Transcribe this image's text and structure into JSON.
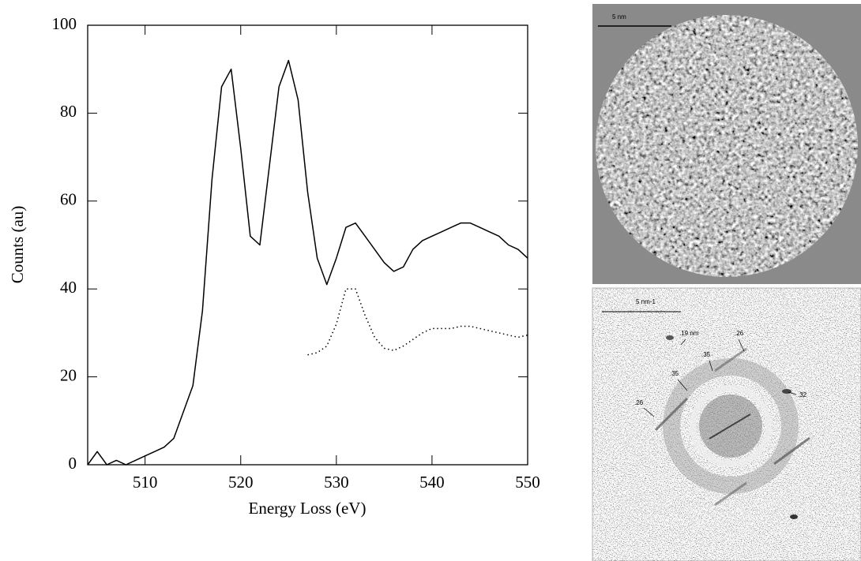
{
  "chart_data": {
    "type": "line",
    "xlabel": "Energy Loss (eV)",
    "ylabel": "Counts (au)",
    "x": [
      504,
      505,
      506,
      507,
      508,
      509,
      510,
      511,
      512,
      513,
      514,
      515,
      516,
      517,
      518,
      519,
      520,
      521,
      522,
      523,
      524,
      525,
      526,
      527,
      528,
      529,
      530,
      531,
      532,
      533,
      534,
      535,
      536,
      537,
      538,
      539,
      540,
      541,
      542,
      543,
      544,
      545,
      546,
      547,
      548,
      549,
      550
    ],
    "series": [
      {
        "color": "#000000",
        "style": "solid",
        "values": [
          0,
          3,
          0,
          1,
          0,
          1,
          2,
          3,
          4,
          6,
          12,
          18,
          35,
          65,
          86,
          90,
          72,
          52,
          50,
          68,
          86,
          92,
          83,
          62,
          47,
          41,
          47,
          54,
          55,
          52,
          49,
          46,
          44,
          45,
          49,
          51,
          52,
          53,
          54,
          55,
          55,
          54,
          53,
          52,
          50,
          49,
          47
        ]
      },
      {
        "color": "#000000",
        "style": "dotted",
        "values": [
          null,
          null,
          null,
          null,
          null,
          null,
          null,
          null,
          null,
          null,
          null,
          null,
          null,
          null,
          null,
          null,
          null,
          null,
          null,
          null,
          null,
          null,
          null,
          25,
          25.5,
          27,
          32,
          40,
          40,
          34,
          29,
          26.5,
          26,
          27,
          28.5,
          30,
          31,
          31,
          31,
          31.5,
          31.5,
          31,
          30.5,
          30,
          29.5,
          29,
          29.5
        ]
      }
    ],
    "xlim": [
      504,
      550
    ],
    "ylim": [
      0,
      100
    ],
    "xticks": [
      510,
      520,
      530,
      540,
      550
    ],
    "yticks": [
      0,
      20,
      40,
      60,
      80,
      100
    ]
  },
  "images": {
    "micrograph": {
      "scale": "5 nm"
    },
    "diffraction": {
      "scale": "5 nm-1",
      "labels": [
        ".19 nm",
        ".26",
        ".35",
        ".35",
        ".26",
        ".32"
      ]
    }
  }
}
